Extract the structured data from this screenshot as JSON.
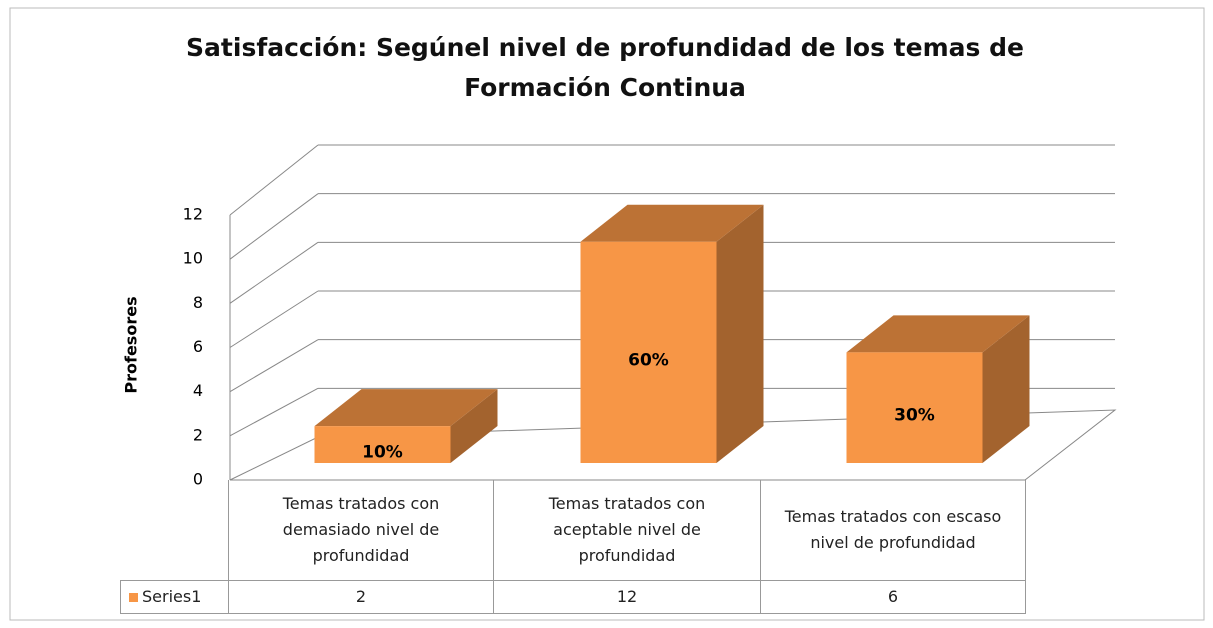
{
  "chart_data": {
    "type": "bar3d",
    "title": "Satisfacción: Segúnel nivel de profundidad de los temas de\nFormación Continua",
    "y_axis_label": "Profesores",
    "categories": [
      "Temas tratados con demasiado nivel de profundidad",
      "Temas tratados con aceptable nivel de profundidad",
      "Temas tratados con escaso nivel de profundidad"
    ],
    "series": [
      {
        "name": "Series1",
        "color": "#f79646",
        "values": [
          2,
          12,
          6
        ]
      }
    ],
    "data_labels": [
      "10%",
      "60%",
      "30%"
    ],
    "ylim": [
      0,
      12
    ],
    "yticks": [
      0,
      2,
      4,
      6,
      8,
      10,
      12
    ],
    "grid": true,
    "data_table": true
  }
}
